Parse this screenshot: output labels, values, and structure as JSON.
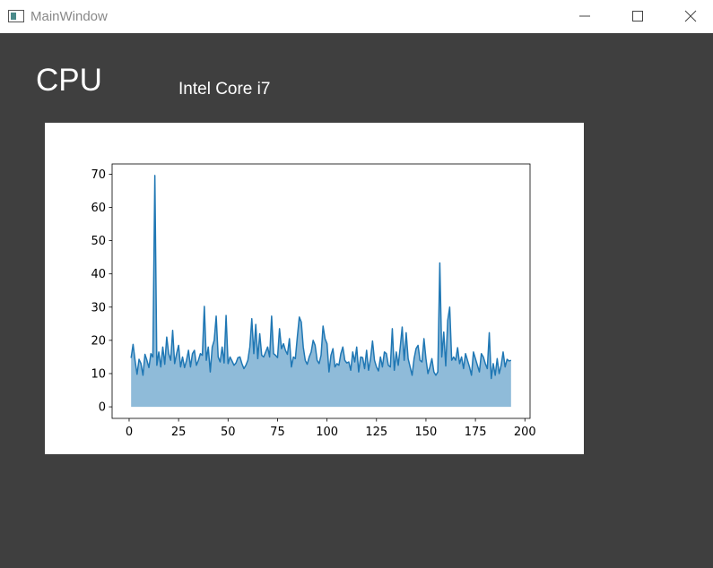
{
  "window": {
    "title": "MainWindow"
  },
  "header": {
    "title": "CPU",
    "subtitle": "Intel Core i7"
  },
  "chart_data": {
    "type": "area",
    "x": [
      1,
      2,
      3,
      4,
      5,
      6,
      7,
      8,
      9,
      10,
      11,
      12,
      13,
      14,
      15,
      16,
      17,
      18,
      19,
      20,
      21,
      22,
      23,
      24,
      25,
      26,
      27,
      28,
      29,
      30,
      31,
      32,
      33,
      34,
      35,
      36,
      37,
      38,
      39,
      40,
      41,
      42,
      43,
      44,
      45,
      46,
      47,
      48,
      49,
      50,
      51,
      52,
      53,
      54,
      55,
      56,
      57,
      58,
      59,
      60,
      61,
      62,
      63,
      64,
      65,
      66,
      67,
      68,
      69,
      70,
      71,
      72,
      73,
      74,
      75,
      76,
      77,
      78,
      79,
      80,
      81,
      82,
      83,
      84,
      85,
      86,
      87,
      88,
      89,
      90,
      91,
      92,
      93,
      94,
      95,
      96,
      97,
      98,
      99,
      100,
      101,
      102,
      103,
      104,
      105,
      106,
      107,
      108,
      109,
      110,
      111,
      112,
      113,
      114,
      115,
      116,
      117,
      118,
      119,
      120,
      121,
      122,
      123,
      124,
      125,
      126,
      127,
      128,
      129,
      130,
      131,
      132,
      133,
      134,
      135,
      136,
      137,
      138,
      139,
      140,
      141,
      142,
      143,
      144,
      145,
      146,
      147,
      148,
      149,
      150,
      151,
      152,
      153,
      154,
      155,
      156,
      157,
      158,
      159,
      160,
      161,
      162,
      163,
      164,
      165,
      166,
      167,
      168,
      169,
      170,
      171,
      172,
      173,
      174,
      175,
      176,
      177,
      178,
      179,
      180,
      181,
      182,
      183,
      184,
      185,
      186,
      187,
      188,
      189,
      190,
      191,
      192,
      193
    ],
    "series": [
      {
        "color": "#1f77b4",
        "fill_color": "#8fbbd9",
        "values": [
          14.7,
          18.8,
          14,
          9.8,
          14.3,
          13,
          9.5,
          15.8,
          14,
          11.8,
          16,
          15,
          69.6,
          12.5,
          16.5,
          12,
          18,
          12.8,
          21,
          16,
          14,
          23,
          13,
          16,
          18.5,
          12,
          15,
          11.8,
          14,
          17,
          12,
          16,
          17,
          12.5,
          14,
          16,
          15.5,
          30.2,
          14,
          18,
          10.5,
          18,
          20,
          27.3,
          15,
          13.5,
          18,
          13.2,
          27.5,
          13,
          15,
          13.8,
          12.5,
          13.2,
          14.8,
          15,
          13,
          11.5,
          12.5,
          14,
          18,
          26.5,
          16,
          24.8,
          14.5,
          22,
          15.5,
          15,
          16.5,
          18,
          15,
          27.3,
          16,
          15.5,
          14.8,
          23.5,
          17.5,
          19,
          17,
          15.8,
          20.5,
          12,
          15,
          14.5,
          21,
          27,
          25.5,
          18,
          14,
          12.8,
          15,
          16.5,
          20,
          18.5,
          14,
          13,
          15.5,
          24.3,
          20.5,
          19,
          10.5,
          15.5,
          17.5,
          12,
          13,
          12.5,
          16,
          18,
          14,
          13.2,
          13.5,
          11,
          16.5,
          13.5,
          18,
          10.5,
          15,
          14.8,
          11.5,
          17,
          11,
          14.5,
          19.8,
          14,
          12,
          10.8,
          15,
          12,
          16.5,
          16,
          12.5,
          12,
          23.5,
          11,
          16.5,
          12.5,
          18,
          24,
          14,
          22.3,
          14.5,
          12,
          9.5,
          14.5,
          17.5,
          18.5,
          14,
          13.5,
          20.5,
          14.5,
          10,
          12,
          14.5,
          10.5,
          9.5,
          10.5,
          43.3,
          15,
          22.5,
          12.3,
          26,
          30,
          14,
          15,
          14,
          17.8,
          13,
          15,
          11.5,
          16,
          14,
          12,
          9.5,
          16.5,
          14.5,
          12.5,
          10.5,
          16,
          15,
          13,
          11.5,
          22.3,
          8.5,
          13,
          9.5,
          14.5,
          10,
          12.5,
          16.5,
          12,
          14.3,
          13.8,
          14
        ]
      }
    ],
    "xlim": [
      -8.6,
      202.6
    ],
    "xticks": [
      0,
      25,
      50,
      75,
      100,
      125,
      150,
      175,
      200
    ],
    "ylim": [
      -3.48,
      73.08
    ],
    "yticks": [
      0,
      10,
      20,
      30,
      40,
      50,
      60,
      70
    ],
    "fill": true,
    "grid": false
  }
}
